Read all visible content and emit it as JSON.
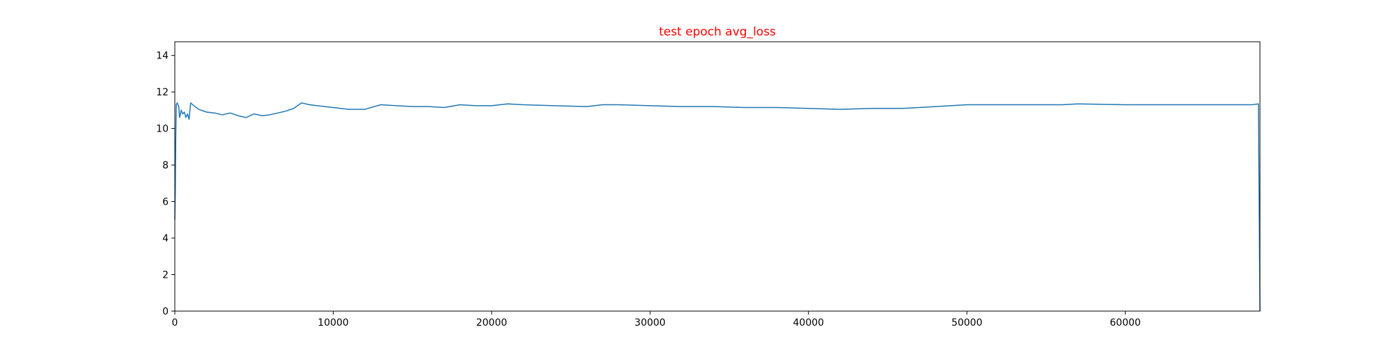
{
  "chart_data": {
    "type": "line",
    "title": "test epoch avg_loss",
    "xlabel": "",
    "ylabel": "",
    "xlim": [
      0,
      68500
    ],
    "ylim": [
      0,
      14.75
    ],
    "grid": false,
    "x_ticks": [
      0,
      10000,
      20000,
      30000,
      40000,
      50000,
      60000
    ],
    "y_ticks": [
      0,
      2,
      4,
      6,
      8,
      10,
      12,
      14
    ],
    "series": [
      {
        "color": "#1f77b4",
        "points": [
          [
            0,
            5.0
          ],
          [
            30,
            6.5
          ],
          [
            60,
            9.5
          ],
          [
            90,
            11.3
          ],
          [
            150,
            11.4
          ],
          [
            250,
            11.2
          ],
          [
            300,
            10.6
          ],
          [
            400,
            11.0
          ],
          [
            500,
            10.8
          ],
          [
            600,
            10.9
          ],
          [
            700,
            10.6
          ],
          [
            800,
            10.8
          ],
          [
            900,
            10.5
          ],
          [
            1000,
            11.4
          ],
          [
            1200,
            11.25
          ],
          [
            1500,
            11.05
          ],
          [
            2000,
            10.9
          ],
          [
            2500,
            10.85
          ],
          [
            3000,
            10.75
          ],
          [
            3500,
            10.85
          ],
          [
            4000,
            10.7
          ],
          [
            4500,
            10.6
          ],
          [
            5000,
            10.8
          ],
          [
            5500,
            10.7
          ],
          [
            6000,
            10.75
          ],
          [
            6500,
            10.85
          ],
          [
            7000,
            10.95
          ],
          [
            7500,
            11.1
          ],
          [
            8000,
            11.4
          ],
          [
            8500,
            11.3
          ],
          [
            9000,
            11.25
          ],
          [
            10000,
            11.15
          ],
          [
            11000,
            11.05
          ],
          [
            12000,
            11.05
          ],
          [
            13000,
            11.3
          ],
          [
            14000,
            11.25
          ],
          [
            15000,
            11.2
          ],
          [
            16000,
            11.2
          ],
          [
            17000,
            11.15
          ],
          [
            18000,
            11.3
          ],
          [
            19000,
            11.25
          ],
          [
            20000,
            11.25
          ],
          [
            21000,
            11.35
          ],
          [
            22000,
            11.3
          ],
          [
            24000,
            11.25
          ],
          [
            26000,
            11.2
          ],
          [
            27000,
            11.3
          ],
          [
            28000,
            11.3
          ],
          [
            30000,
            11.25
          ],
          [
            32000,
            11.2
          ],
          [
            34000,
            11.2
          ],
          [
            36000,
            11.15
          ],
          [
            38000,
            11.15
          ],
          [
            40000,
            11.1
          ],
          [
            42000,
            11.05
          ],
          [
            44000,
            11.1
          ],
          [
            46000,
            11.1
          ],
          [
            48000,
            11.2
          ],
          [
            50000,
            11.3
          ],
          [
            52000,
            11.3
          ],
          [
            54000,
            11.3
          ],
          [
            56000,
            11.3
          ],
          [
            57000,
            11.35
          ],
          [
            60000,
            11.3
          ],
          [
            62000,
            11.3
          ],
          [
            64000,
            11.3
          ],
          [
            66000,
            11.3
          ],
          [
            68000,
            11.3
          ],
          [
            68400,
            11.35
          ],
          [
            68500,
            0.0
          ]
        ]
      }
    ]
  },
  "colors": {
    "title": "#ff0000",
    "line": "#1f77b4",
    "axes": "#000000"
  }
}
